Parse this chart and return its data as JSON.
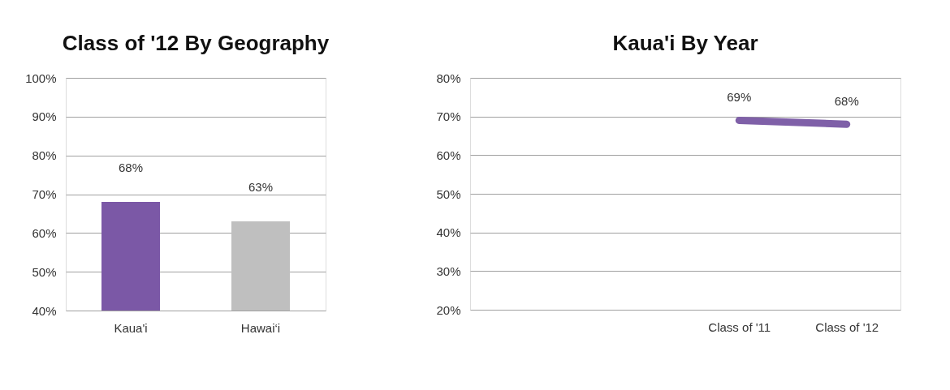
{
  "chart_data": [
    {
      "type": "bar",
      "title": "Class of '12 By Geography",
      "categories": [
        "Kaua'i",
        "Hawai‘i"
      ],
      "values": [
        68,
        63
      ],
      "colors": [
        "#7b58a6",
        "#bfbfbf"
      ],
      "value_labels": [
        "68%",
        "63%"
      ],
      "ylim": [
        40,
        100
      ],
      "yticks": [
        {
          "value": 40,
          "label": "40%"
        },
        {
          "value": 50,
          "label": "50%"
        },
        {
          "value": 60,
          "label": "60%"
        },
        {
          "value": 70,
          "label": "70%"
        },
        {
          "value": 80,
          "label": "80%"
        },
        {
          "value": 90,
          "label": "90%"
        },
        {
          "value": 100,
          "label": "100%"
        }
      ],
      "grid": "y"
    },
    {
      "type": "line",
      "title": "Kaua'i By Year",
      "categories": [
        null,
        null,
        "Class of '11",
        "Class of '12"
      ],
      "series": [
        {
          "color": "#7f60a8",
          "values": [
            null,
            null,
            69,
            68
          ],
          "value_labels": [
            null,
            null,
            "69%",
            "68%"
          ]
        }
      ],
      "ylim": [
        20,
        80
      ],
      "yticks": [
        {
          "value": 20,
          "label": "20%"
        },
        {
          "value": 30,
          "label": "30%"
        },
        {
          "value": 40,
          "label": "40%"
        },
        {
          "value": 50,
          "label": "50%"
        },
        {
          "value": 60,
          "label": "60%"
        },
        {
          "value": 70,
          "label": "70%"
        },
        {
          "value": 80,
          "label": "80%"
        }
      ],
      "grid": "y"
    }
  ]
}
